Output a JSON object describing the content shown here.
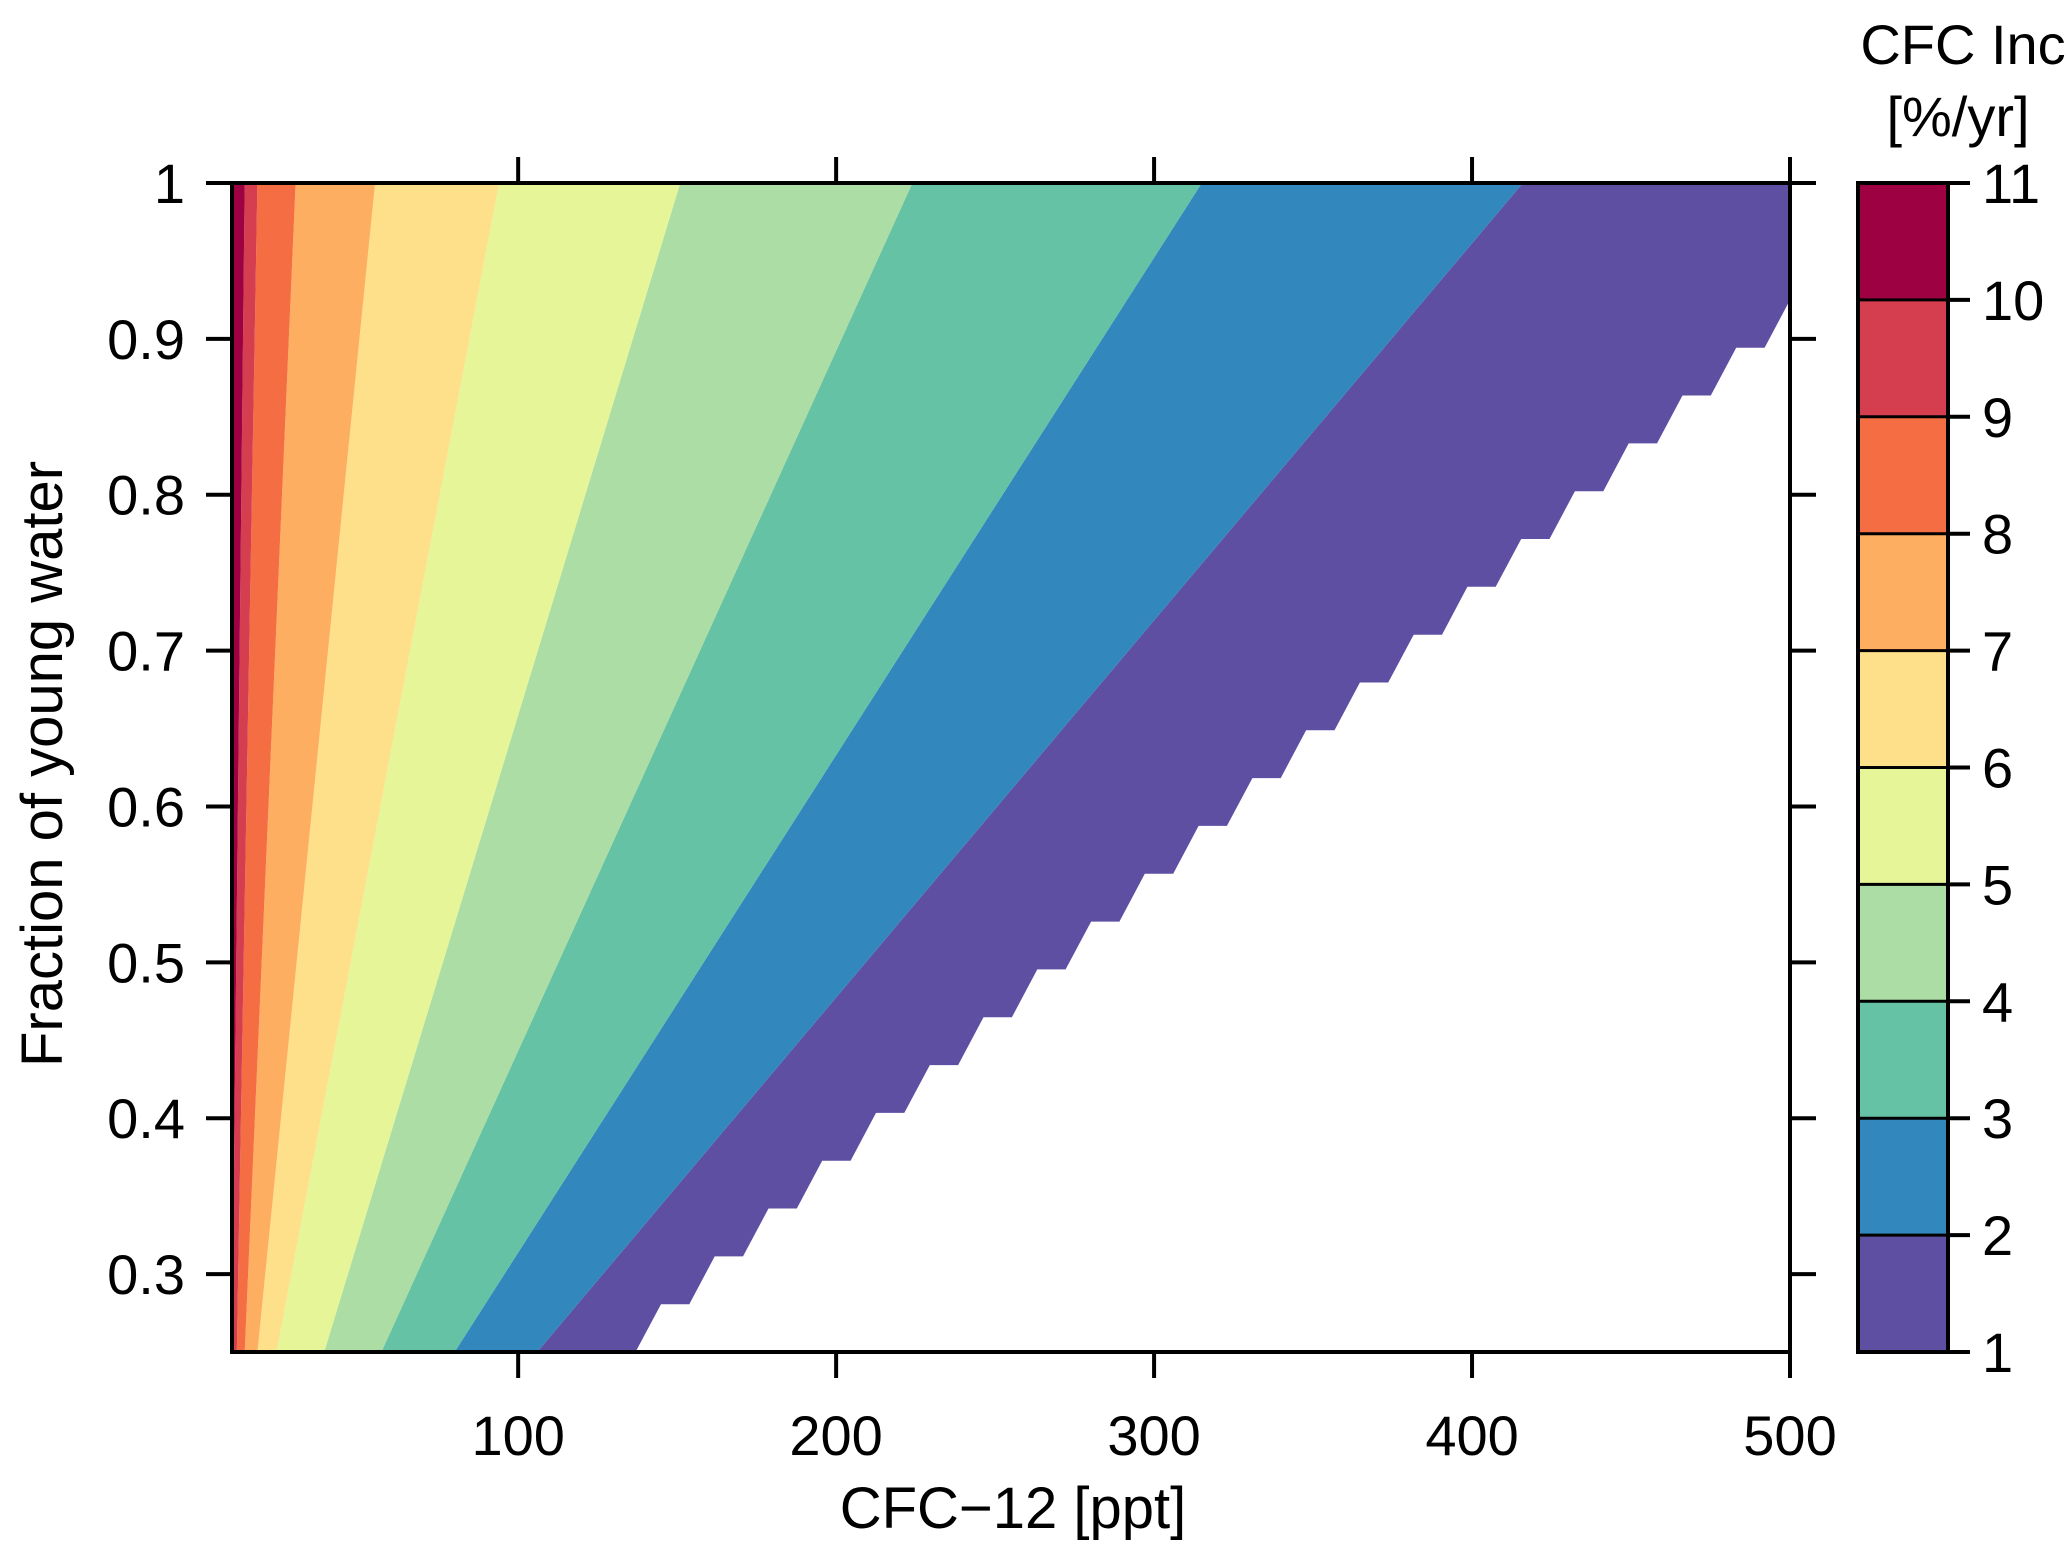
{
  "chart_data": {
    "type": "contour",
    "xlabel": "CFC−12 [ppt]",
    "ylabel": "Fraction of young water",
    "xlim": [
      10,
      500
    ],
    "ylim": [
      0.25,
      1.0
    ],
    "xticks": [
      "100",
      "200",
      "300",
      "400",
      "500"
    ],
    "xtick_values": [
      100,
      200,
      300,
      400,
      500
    ],
    "yticks": [
      "0.3",
      "0.4",
      "0.5",
      "0.6",
      "0.7",
      "0.8",
      "0.9",
      "1"
    ],
    "ytick_values": [
      0.3,
      0.4,
      0.5,
      0.6,
      0.7,
      0.8,
      0.9,
      1.0
    ],
    "colorbar": {
      "title_line1": "CFC Inc",
      "title_line2": "[%/yr]",
      "levels": [
        1,
        2,
        3,
        4,
        5,
        6,
        7,
        8,
        9,
        10,
        11
      ],
      "level_labels": [
        "1",
        "2",
        "3",
        "4",
        "5",
        "6",
        "7",
        "8",
        "9",
        "10",
        "11"
      ],
      "colors": [
        "#5e4fa2",
        "#3288bd",
        "#66c2a5",
        "#abdda4",
        "#e6f598",
        "#fee08b",
        "#fdae61",
        "#f46d43",
        "#d53e4f",
        "#9e0142"
      ]
    },
    "contour_boundaries": {
      "y_values": [
        0.25,
        1.0
      ],
      "lower_bound_of_data": {
        "x_at_y": [
          128,
          500
        ],
        "x_at_y_top": 500,
        "note_values": [
          [
            128,
            0.25
          ],
          [
            500,
            0.925
          ]
        ]
      },
      "level_2": {
        "x": [
          106,
          416
        ]
      },
      "level_3": {
        "x": [
          80,
          315
        ]
      },
      "level_4": {
        "x": [
          57,
          224
        ]
      },
      "level_5": {
        "x": [
          39,
          151
        ]
      },
      "level_6": {
        "x": [
          24,
          94
        ]
      },
      "level_7": {
        "x": [
          18,
          55
        ]
      },
      "level_8": {
        "x": [
          14,
          30
        ]
      },
      "level_9": {
        "x": [
          11.5,
          18
        ]
      },
      "level_10": {
        "x": [
          10,
          14
        ]
      }
    }
  }
}
